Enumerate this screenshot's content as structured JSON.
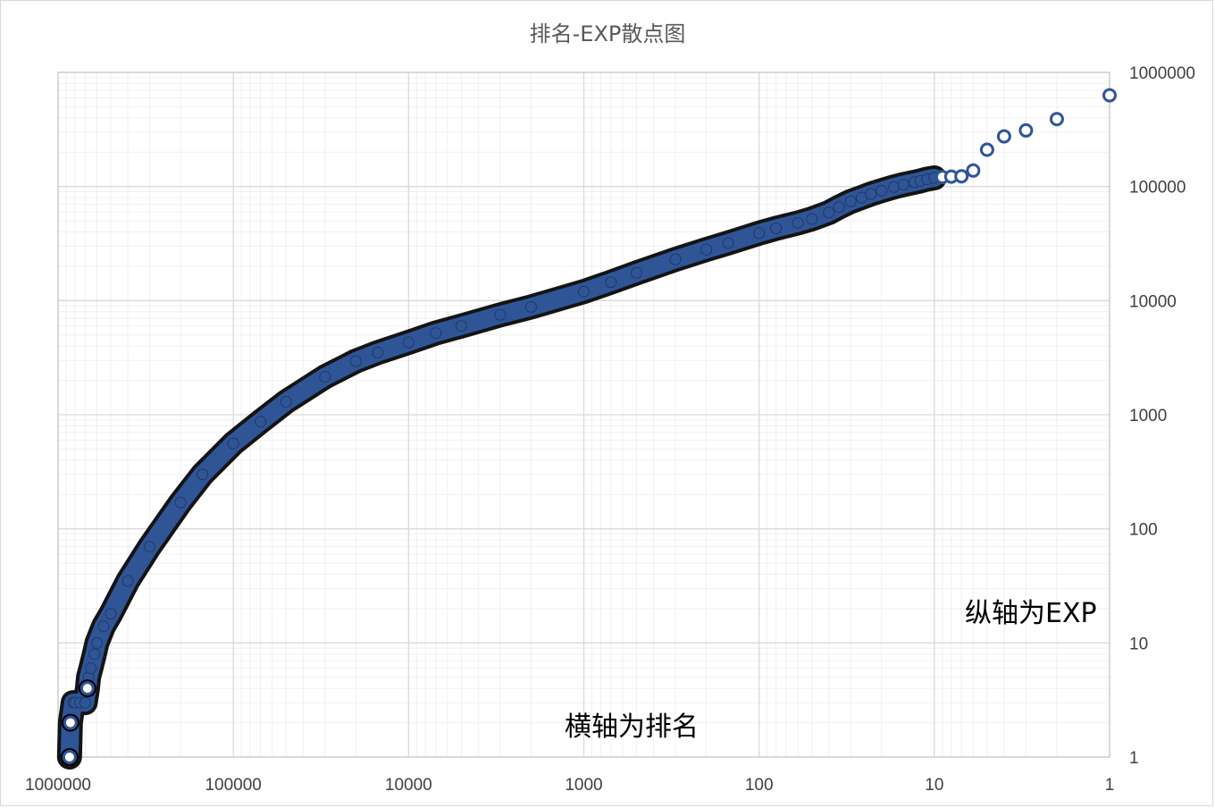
{
  "chart_data": {
    "type": "scatter",
    "title": "排名-EXP散点图",
    "xlabel": "",
    "ylabel": "",
    "x_scale": "log",
    "y_scale": "log",
    "x_reversed": true,
    "y_axis_side": "right",
    "xlim": [
      1000000,
      1
    ],
    "ylim": [
      1,
      1000000
    ],
    "grid": true,
    "x_ticks": [
      "1000000",
      "100000",
      "10000",
      "1000",
      "100",
      "10",
      "1"
    ],
    "y_ticks": [
      "1000000",
      "100000",
      "10000",
      "1000",
      "100",
      "10",
      "1"
    ],
    "annotations": [
      "横轴为排名",
      "纵轴为EXP"
    ],
    "series": [
      {
        "color": "#2f5597",
        "outline": "#000000",
        "marker": "circle",
        "points": [
          [
            1,
            630000
          ],
          [
            2,
            390000
          ],
          [
            3,
            310000
          ],
          [
            4,
            275000
          ],
          [
            5,
            210000
          ],
          [
            6,
            138000
          ],
          [
            7,
            123000
          ],
          [
            8,
            122000
          ],
          [
            9,
            121000
          ],
          [
            10,
            119000
          ],
          [
            11,
            116000
          ],
          [
            12,
            112000
          ],
          [
            13,
            109000
          ],
          [
            15,
            104000
          ],
          [
            17,
            99000
          ],
          [
            20,
            92000
          ],
          [
            23,
            86000
          ],
          [
            26,
            80000
          ],
          [
            30,
            74000
          ],
          [
            35,
            66000
          ],
          [
            40,
            59000
          ],
          [
            50,
            52000
          ],
          [
            60,
            48000
          ],
          [
            80,
            43000
          ],
          [
            100,
            39000
          ],
          [
            150,
            32000
          ],
          [
            200,
            28000
          ],
          [
            300,
            23000
          ],
          [
            500,
            17500
          ],
          [
            700,
            14500
          ],
          [
            1000,
            12000
          ],
          [
            2000,
            8800
          ],
          [
            3000,
            7500
          ],
          [
            5000,
            6000
          ],
          [
            7000,
            5200
          ],
          [
            10000,
            4300
          ],
          [
            15000,
            3500
          ],
          [
            20000,
            2950
          ],
          [
            30000,
            2150
          ],
          [
            50000,
            1300
          ],
          [
            70000,
            870
          ],
          [
            100000,
            560
          ],
          [
            150000,
            300
          ],
          [
            200000,
            170
          ],
          [
            300000,
            70
          ],
          [
            400000,
            35
          ],
          [
            500000,
            18
          ],
          [
            550000,
            14
          ],
          [
            600000,
            10
          ],
          [
            620000,
            8
          ],
          [
            650000,
            6
          ],
          [
            670000,
            5
          ],
          [
            680000,
            4
          ],
          [
            700000,
            3
          ],
          [
            750000,
            3
          ],
          [
            800000,
            3
          ],
          [
            820000,
            3
          ],
          [
            850000,
            2
          ],
          [
            860000,
            1
          ]
        ]
      }
    ]
  }
}
